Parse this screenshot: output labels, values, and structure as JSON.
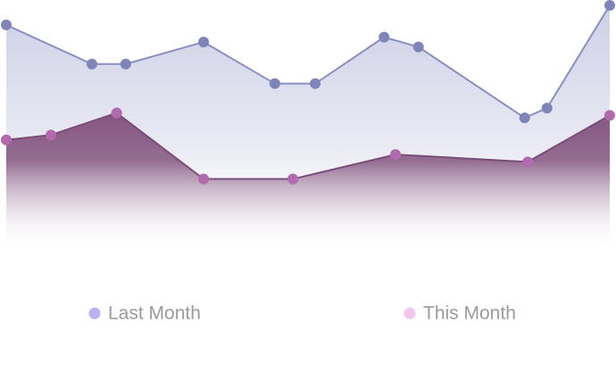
{
  "chart_data": {
    "type": "area",
    "xlim": [
      0,
      100
    ],
    "ylim": [
      0,
      100
    ],
    "series": [
      {
        "name": "Last Month",
        "color": "#8a8fc2",
        "point_color": "#7f85b9",
        "fill_color": "#c5c7e1",
        "legend_color": "#b9b3f1",
        "x": [
          0,
          14.2,
          19.8,
          32.7,
          44.5,
          51.2,
          62.6,
          68.3,
          85.9,
          89.6,
          100
        ],
        "values": [
          92,
          76,
          76,
          85,
          68,
          68,
          87,
          83,
          54,
          58,
          100
        ]
      },
      {
        "name": "This Month",
        "color": "#7a4d78",
        "point_color": "#b06aad",
        "fill_color": "#855681",
        "legend_color": "#f0c6ec",
        "x": [
          0,
          7.4,
          18.3,
          32.7,
          47.5,
          64.5,
          86.4,
          100
        ],
        "values": [
          45,
          47,
          56,
          29,
          29,
          39,
          36,
          55
        ]
      }
    ]
  }
}
